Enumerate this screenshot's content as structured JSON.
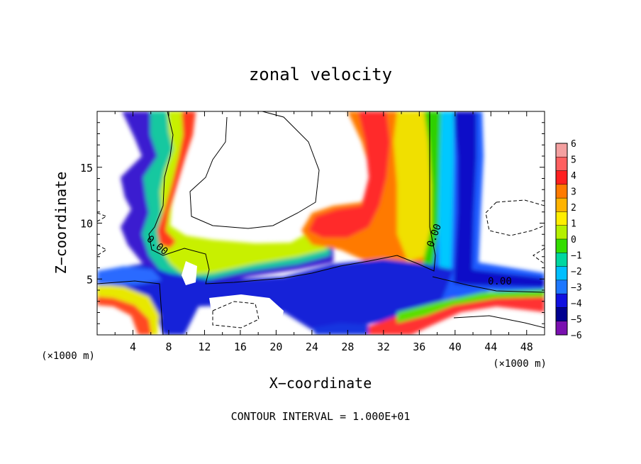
{
  "chart_data": {
    "type": "heatmap",
    "title": "zonal velocity",
    "xlabel": "X−coordinate",
    "ylabel": "Z−coordinate",
    "x_unit_left": "(×1000 m)",
    "x_unit_right": "(×1000 m)",
    "footer": "CONTOUR INTERVAL = 1.000E+01",
    "xlim": [
      0,
      50
    ],
    "ylim": [
      0,
      20
    ],
    "x_ticks": [
      4,
      8,
      12,
      16,
      20,
      24,
      28,
      32,
      36,
      40,
      44,
      48
    ],
    "y_ticks": [
      5,
      10,
      15
    ],
    "colorbar": {
      "labels": [
        "6",
        "5",
        "4",
        "3",
        "2",
        "1",
        "0",
        "−1",
        "−2",
        "−3",
        "−4",
        "−5",
        "−6"
      ],
      "colors": [
        "#f4a0a0",
        "#ff6060",
        "#ff2020",
        "#ff7a00",
        "#ffb300",
        "#ffee00",
        "#b5f000",
        "#33dd00",
        "#00d7a0",
        "#00bfff",
        "#1e78ff",
        "#1010e0",
        "#000090",
        "#7a10b0"
      ]
    },
    "contour_labels": [
      {
        "text": "0.00",
        "x": 6.5,
        "y": 7.8
      },
      {
        "text": "0.00",
        "x": 38.0,
        "y": 8.8
      },
      {
        "text": "0.00",
        "x": 45.0,
        "y": 4.5
      }
    ]
  }
}
